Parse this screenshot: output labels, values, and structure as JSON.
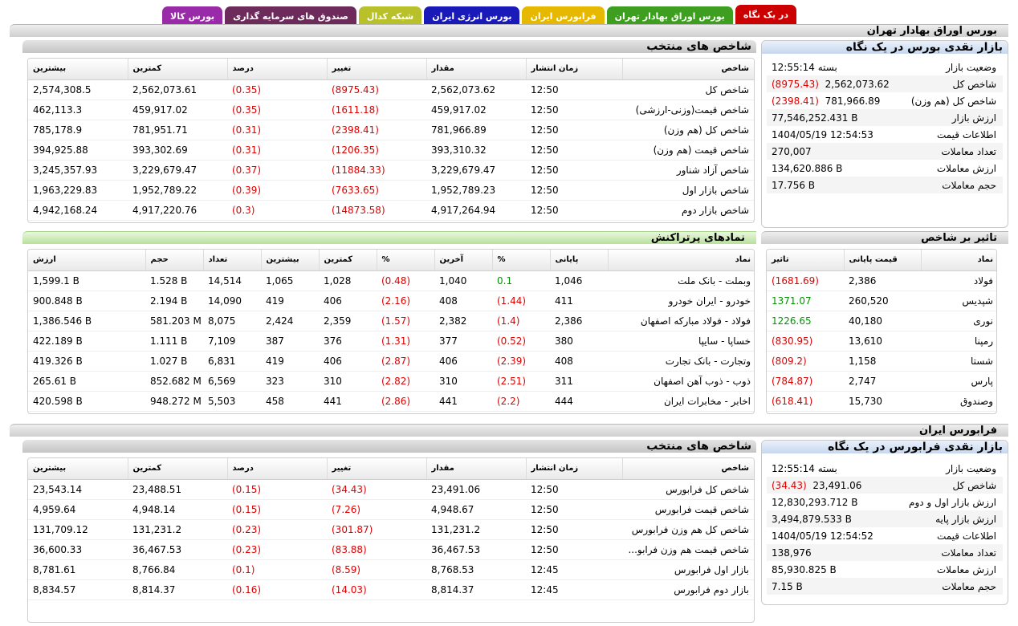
{
  "tabs": [
    {
      "label": "در یک نگاه",
      "color": "#cc0000"
    },
    {
      "label": "بورس اوراق بهادار تهران",
      "color": "#3d9e1f"
    },
    {
      "label": "فرابورس ایران",
      "color": "#e6b800"
    },
    {
      "label": "بورس انرژی ایران",
      "color": "#1a1ab8"
    },
    {
      "label": "شبکه کدال",
      "color": "#b8c02a"
    },
    {
      "label": "صندوق های سرمایه گذاری",
      "color": "#6d2b5c"
    },
    {
      "label": "بورس کالا",
      "color": "#9a2ba8"
    }
  ],
  "tse": {
    "title": "بورس اوراق بهادار تهران",
    "overview": {
      "title": "بازار نقدی بورس در یک نگاه",
      "rows": [
        {
          "label": "وضعیت بازار",
          "value": "بسته 12:55:14",
          "change": ""
        },
        {
          "label": "شاخص کل",
          "value": "2,562,073.62",
          "change": "(8975.43)"
        },
        {
          "label": "شاخص کل (هم وزن)",
          "value": "781,966.89",
          "change": "(2398.41)"
        },
        {
          "label": "ارزش بازار",
          "value": "77,546,252.431 B",
          "change": ""
        },
        {
          "label": "اطلاعات قیمت",
          "value": "1404/05/19 12:54:53",
          "change": ""
        },
        {
          "label": "تعداد معاملات",
          "value": "270,007",
          "change": ""
        },
        {
          "label": "ارزش معاملات",
          "value": "134,620.886 B",
          "change": ""
        },
        {
          "label": "حجم معاملات",
          "value": "17.756 B",
          "change": ""
        }
      ]
    },
    "indices": {
      "title": "شاخص های منتخب",
      "headers": [
        "شاخص",
        "زمان انتشار",
        "مقدار",
        "تغییر",
        "درصد",
        "کمترین",
        "بیشترین"
      ],
      "rows": [
        [
          "شاخص کل",
          "12:50",
          "2,562,073.62",
          "(8975.43)",
          "(0.35)",
          "2,562,073.61",
          "2,574,308.5"
        ],
        [
          "شاخص قیمت(وزنی-ارزشی)",
          "12:50",
          "459,917.02",
          "(1611.18)",
          "(0.35)",
          "459,917.02",
          "462,113.3"
        ],
        [
          "شاخص کل (هم وزن)",
          "12:50",
          "781,966.89",
          "(2398.41)",
          "(0.31)",
          "781,951.71",
          "785,178.9"
        ],
        [
          "شاخص قیمت (هم وزن)",
          "12:50",
          "393,310.32",
          "(1206.35)",
          "(0.31)",
          "393,302.69",
          "394,925.88"
        ],
        [
          "شاخص آزاد شناور",
          "12:50",
          "3,229,679.47",
          "(11884.33)",
          "(0.37)",
          "3,229,679.47",
          "3,245,357.93"
        ],
        [
          "شاخص بازار اول",
          "12:50",
          "1,952,789.23",
          "(7633.65)",
          "(0.39)",
          "1,952,789.22",
          "1,963,229.83"
        ],
        [
          "شاخص بازار دوم",
          "12:50",
          "4,917,264.94",
          "(14873.58)",
          "(0.3)",
          "4,917,220.76",
          "4,942,168.24"
        ]
      ]
    },
    "impact": {
      "title": "تاثیر بر شاخص",
      "headers": [
        "نماد",
        "قیمت پایانی",
        "تاثیر"
      ],
      "rows": [
        [
          "فولاد",
          "2,386",
          "(1681.69)"
        ],
        [
          "شپدیس",
          "260,520",
          "1371.07"
        ],
        [
          "نوری",
          "40,180",
          "1226.65"
        ],
        [
          "رمپنا",
          "13,610",
          "(830.95)"
        ],
        [
          "شستا",
          "1,158",
          "(809.2)"
        ],
        [
          "پارس",
          "2,747",
          "(784.87)"
        ],
        [
          "وصندوق",
          "15,730",
          "(618.41)"
        ]
      ]
    },
    "active": {
      "title": "نمادهای پرتراکنش",
      "headers": [
        "نماد",
        "پایانی",
        "%",
        "آخرین",
        "%",
        "کمترین",
        "بیشترین",
        "تعداد",
        "حجم",
        "ارزش"
      ],
      "rows": [
        [
          "وبملت - بانک ملت",
          "1,046",
          "0.1",
          "1,040",
          "(0.48)",
          "1,028",
          "1,065",
          "14,514",
          "1.528 B",
          "1,599.1 B"
        ],
        [
          "خودرو - ایران خودرو",
          "411",
          "(1.44)",
          "408",
          "(2.16)",
          "406",
          "419",
          "14,090",
          "2.194 B",
          "900.848 B"
        ],
        [
          "فولاد - فولاد مبارکه اصفهان",
          "2,386",
          "(1.4)",
          "2,382",
          "(1.57)",
          "2,359",
          "2,424",
          "8,075",
          "581.203 M",
          "1,386.546 B"
        ],
        [
          "خساپا - سایپا",
          "380",
          "(0.52)",
          "377",
          "(1.31)",
          "376",
          "387",
          "7,109",
          "1.111 B",
          "422.189 B"
        ],
        [
          "وتجارت - بانک تجارت",
          "408",
          "(2.39)",
          "406",
          "(2.87)",
          "406",
          "419",
          "6,831",
          "1.027 B",
          "419.326 B"
        ],
        [
          "ذوب - ذوب آهن اصفهان",
          "311",
          "(2.51)",
          "310",
          "(2.82)",
          "310",
          "323",
          "6,569",
          "852.682 M",
          "265.61 B"
        ],
        [
          "اخابر - مخابرات ایران",
          "444",
          "(2.2)",
          "441",
          "(2.86)",
          "441",
          "458",
          "5,503",
          "948.272 M",
          "420.598 B"
        ]
      ]
    }
  },
  "ifb": {
    "title": "فرابورس ایران",
    "overview": {
      "title": "بازار نقدی فرابورس در یک نگاه",
      "rows": [
        {
          "label": "وضعیت بازار",
          "value": "بسته 12:55:14",
          "change": ""
        },
        {
          "label": "شاخص کل",
          "value": "23,491.06",
          "change": "(34.43)"
        },
        {
          "label": "ارزش بازار اول و دوم",
          "value": "12,830,293.712 B",
          "change": ""
        },
        {
          "label": "ارزش بازار پایه",
          "value": "3,494,879.533 B",
          "change": ""
        },
        {
          "label": "اطلاعات قیمت",
          "value": "1404/05/19 12:54:52",
          "change": ""
        },
        {
          "label": "تعداد معاملات",
          "value": "138,976",
          "change": ""
        },
        {
          "label": "ارزش معاملات",
          "value": "85,930.825 B",
          "change": ""
        },
        {
          "label": "حجم معاملات",
          "value": "7.15 B",
          "change": ""
        }
      ]
    },
    "indices": {
      "title": "شاخص های منتخب",
      "headers": [
        "شاخص",
        "زمان انتشار",
        "مقدار",
        "تغییر",
        "درصد",
        "کمترین",
        "بیشترین"
      ],
      "rows": [
        [
          "شاخص کل فرابورس",
          "12:50",
          "23,491.06",
          "(34.43)",
          "(0.15)",
          "23,488.51",
          "23,543.14"
        ],
        [
          "شاخص قیمت فرابورس",
          "12:50",
          "4,948.67",
          "(7.26)",
          "(0.15)",
          "4,948.14",
          "4,959.64"
        ],
        [
          "شاخص کل هم وزن فرابورس",
          "12:50",
          "131,231.2",
          "(301.87)",
          "(0.23)",
          "131,231.2",
          "131,709.12"
        ],
        [
          "شاخص قیمت هم وزن فرابو...",
          "12:50",
          "36,467.53",
          "(83.88)",
          "(0.23)",
          "36,467.53",
          "36,600.33"
        ],
        [
          "بازار اول فرابورس",
          "12:45",
          "8,768.53",
          "(8.59)",
          "(0.1)",
          "8,766.84",
          "8,781.61"
        ],
        [
          "بازار دوم فرابورس",
          "12:45",
          "8,814.37",
          "(14.03)",
          "(0.16)",
          "8,814.37",
          "8,834.57"
        ]
      ]
    }
  }
}
